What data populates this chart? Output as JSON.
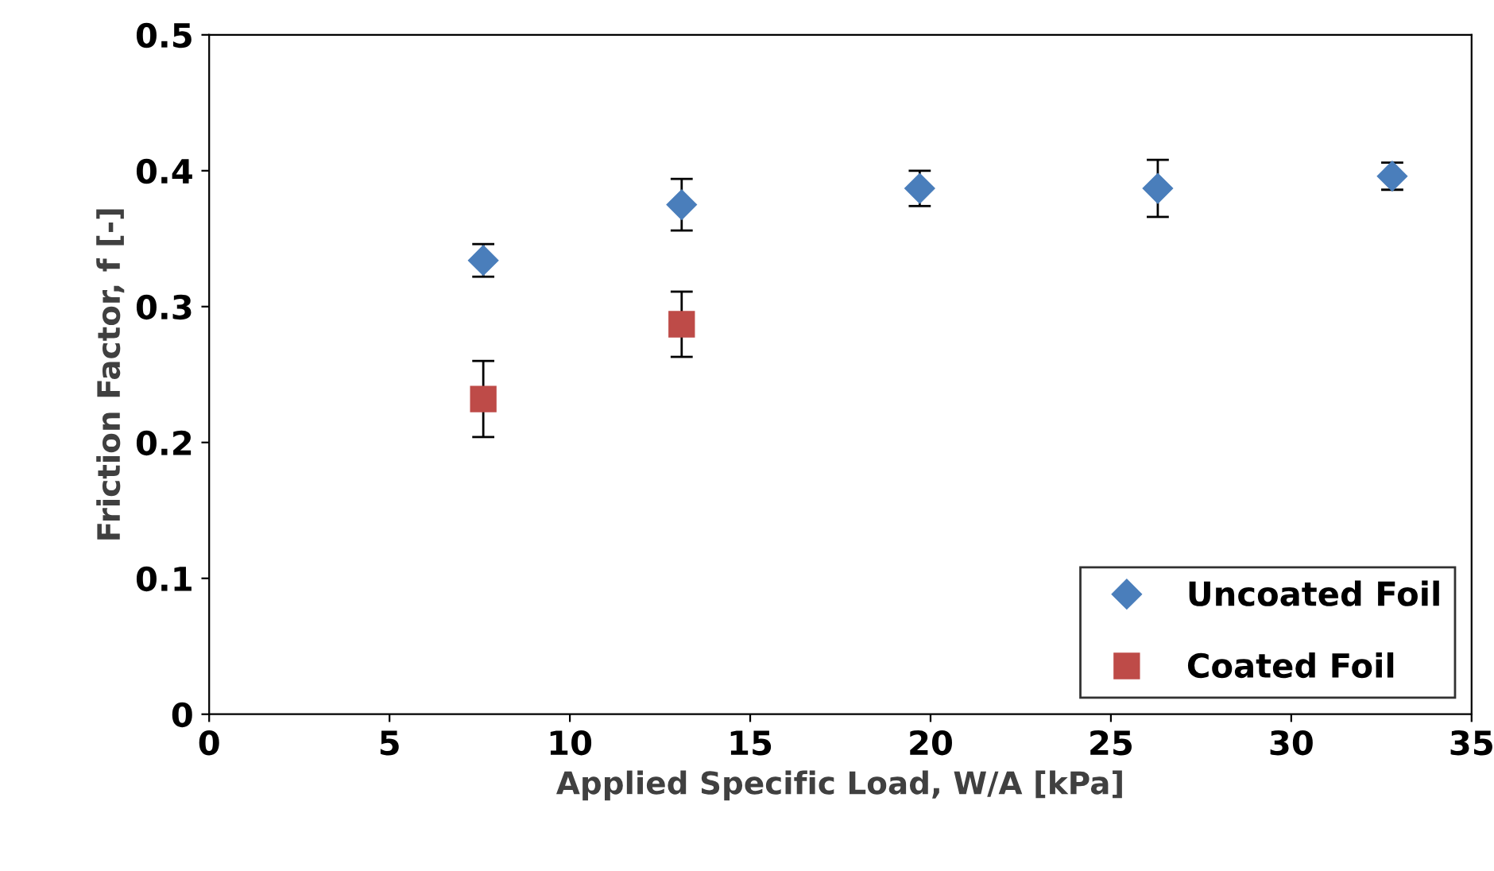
{
  "chart_data": {
    "type": "scatter",
    "xlabel": "Applied Specific Load, W/A [kPa]",
    "ylabel": "Friction Factor, f [-]",
    "xlim": [
      0,
      35
    ],
    "xticks": [
      0,
      5,
      10,
      15,
      20,
      25,
      30,
      35
    ],
    "ylim": [
      0,
      0.5
    ],
    "yticks": [
      0,
      0.1,
      0.2,
      0.3,
      0.4,
      0.5
    ],
    "grid": false,
    "legend": "bottom right",
    "series": [
      {
        "name": "Uncoated Foil",
        "color": "#4a7ebb",
        "marker": "diamond",
        "x": [
          7.6,
          13.1,
          19.7,
          26.3,
          32.8
        ],
        "values": [
          0.334,
          0.375,
          0.387,
          0.387,
          0.396
        ],
        "errors": [
          0.012,
          0.019,
          0.013,
          0.021,
          0.01
        ]
      },
      {
        "name": "Coated Foil",
        "color": "#be4b48",
        "marker": "square",
        "x": [
          7.6,
          13.1
        ],
        "values": [
          0.232,
          0.287
        ],
        "errors": [
          0.028,
          0.024
        ]
      }
    ]
  }
}
